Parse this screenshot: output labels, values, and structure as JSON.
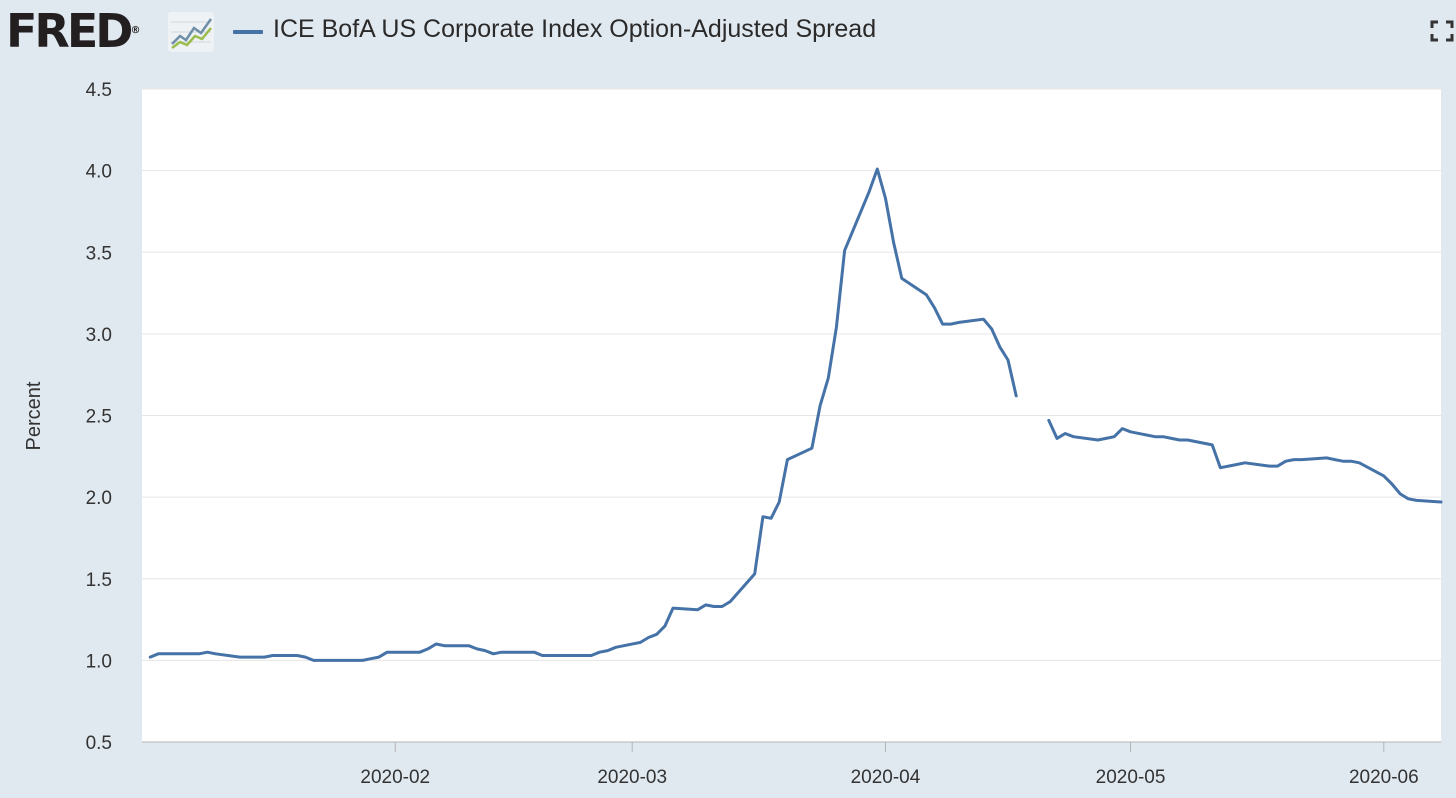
{
  "header": {
    "logo_text": "FRED",
    "logo_registered": "®",
    "title": "ICE BofA US Corporate Index Option-Adjusted Spread",
    "series_color": "#4572a7"
  },
  "icons": {
    "logo_graph": "line-chart-icon",
    "fullscreen": "fullscreen-icon"
  },
  "chart_data": {
    "type": "line",
    "title": "ICE BofA US Corporate Index Option-Adjusted Spread",
    "ylabel": "Percent",
    "xlabel": "",
    "ylim": [
      0.5,
      4.5
    ],
    "yticks": [
      "0.5",
      "1.0",
      "1.5",
      "2.0",
      "2.5",
      "3.0",
      "3.5",
      "4.0",
      "4.5"
    ],
    "xticks": [
      {
        "label": "2020-02",
        "date": "2020-02-01"
      },
      {
        "label": "2020-03",
        "date": "2020-03-01"
      },
      {
        "label": "2020-04",
        "date": "2020-04-01"
      },
      {
        "label": "2020-05",
        "date": "2020-05-01"
      },
      {
        "label": "2020-06",
        "date": "2020-06-01"
      }
    ],
    "xlim": [
      "2020-01-01",
      "2020-06-08"
    ],
    "grid": "horizontal",
    "series": [
      {
        "color": "#4572a7",
        "points": [
          [
            "2020-01-02",
            1.02
          ],
          [
            "2020-01-03",
            1.04
          ],
          [
            "2020-01-06",
            1.04
          ],
          [
            "2020-01-07",
            1.04
          ],
          [
            "2020-01-08",
            1.04
          ],
          [
            "2020-01-09",
            1.05
          ],
          [
            "2020-01-10",
            1.04
          ],
          [
            "2020-01-13",
            1.02
          ],
          [
            "2020-01-14",
            1.02
          ],
          [
            "2020-01-15",
            1.02
          ],
          [
            "2020-01-16",
            1.02
          ],
          [
            "2020-01-17",
            1.03
          ],
          [
            "2020-01-20",
            1.03
          ],
          [
            "2020-01-21",
            1.02
          ],
          [
            "2020-01-22",
            1.0
          ],
          [
            "2020-01-23",
            1.0
          ],
          [
            "2020-01-24",
            1.0
          ],
          [
            "2020-01-27",
            1.0
          ],
          [
            "2020-01-28",
            1.0
          ],
          [
            "2020-01-29",
            1.01
          ],
          [
            "2020-01-30",
            1.02
          ],
          [
            "2020-01-31",
            1.05
          ],
          [
            "2020-02-03",
            1.05
          ],
          [
            "2020-02-04",
            1.05
          ],
          [
            "2020-02-05",
            1.07
          ],
          [
            "2020-02-06",
            1.1
          ],
          [
            "2020-02-07",
            1.09
          ],
          [
            "2020-02-10",
            1.09
          ],
          [
            "2020-02-11",
            1.07
          ],
          [
            "2020-02-12",
            1.06
          ],
          [
            "2020-02-13",
            1.04
          ],
          [
            "2020-02-14",
            1.05
          ],
          [
            "2020-02-17",
            1.05
          ],
          [
            "2020-02-18",
            1.05
          ],
          [
            "2020-02-19",
            1.03
          ],
          [
            "2020-02-20",
            1.03
          ],
          [
            "2020-02-21",
            1.03
          ],
          [
            "2020-02-24",
            1.03
          ],
          [
            "2020-02-25",
            1.03
          ],
          [
            "2020-02-26",
            1.05
          ],
          [
            "2020-02-27",
            1.06
          ],
          [
            "2020-02-28",
            1.08
          ],
          [
            "2020-03-02",
            1.11
          ],
          [
            "2020-03-03",
            1.14
          ],
          [
            "2020-03-04",
            1.16
          ],
          [
            "2020-03-05",
            1.21
          ],
          [
            "2020-03-06",
            1.32
          ],
          [
            "2020-03-09",
            1.31
          ],
          [
            "2020-03-10",
            1.34
          ],
          [
            "2020-03-11",
            1.33
          ],
          [
            "2020-03-12",
            1.33
          ],
          [
            "2020-03-13",
            1.36
          ],
          [
            "2020-03-16",
            1.53
          ],
          [
            "2020-03-17",
            1.88
          ],
          [
            "2020-03-18",
            1.87
          ],
          [
            "2020-03-19",
            1.97
          ],
          [
            "2020-03-20",
            2.23
          ],
          [
            "2020-03-23",
            2.3
          ],
          [
            "2020-03-24",
            2.56
          ],
          [
            "2020-03-25",
            2.73
          ],
          [
            "2020-03-26",
            3.04
          ],
          [
            "2020-03-27",
            3.51
          ],
          [
            "2020-03-30",
            3.87
          ],
          [
            "2020-03-31",
            4.01
          ],
          [
            "2020-04-01",
            3.83
          ],
          [
            "2020-04-02",
            3.56
          ],
          [
            "2020-04-03",
            3.34
          ],
          [
            "2020-04-06",
            3.24
          ],
          [
            "2020-04-07",
            3.16
          ],
          [
            "2020-04-08",
            3.06
          ],
          [
            "2020-04-09",
            3.06
          ],
          [
            "2020-04-10",
            3.07
          ],
          [
            "2020-04-13",
            3.09
          ],
          [
            "2020-04-14",
            3.03
          ],
          [
            "2020-04-15",
            2.92
          ],
          [
            "2020-04-16",
            2.84
          ],
          [
            "2020-04-17",
            2.62
          ],
          null,
          [
            "2020-04-21",
            2.47
          ],
          [
            "2020-04-22",
            2.36
          ],
          [
            "2020-04-23",
            2.39
          ],
          [
            "2020-04-24",
            2.37
          ],
          [
            "2020-04-27",
            2.35
          ],
          [
            "2020-04-28",
            2.36
          ],
          [
            "2020-04-29",
            2.37
          ],
          [
            "2020-04-30",
            2.42
          ],
          [
            "2020-05-01",
            2.4
          ],
          [
            "2020-05-04",
            2.37
          ],
          [
            "2020-05-05",
            2.37
          ],
          [
            "2020-05-06",
            2.36
          ],
          [
            "2020-05-07",
            2.35
          ],
          [
            "2020-05-08",
            2.35
          ],
          [
            "2020-05-11",
            2.32
          ],
          [
            "2020-05-12",
            2.18
          ],
          [
            "2020-05-13",
            2.19
          ],
          [
            "2020-05-14",
            2.2
          ],
          [
            "2020-05-15",
            2.21
          ],
          [
            "2020-05-18",
            2.19
          ],
          [
            "2020-05-19",
            2.19
          ],
          [
            "2020-05-20",
            2.22
          ],
          [
            "2020-05-21",
            2.23
          ],
          [
            "2020-05-22",
            2.23
          ],
          [
            "2020-05-25",
            2.24
          ],
          [
            "2020-05-26",
            2.23
          ],
          [
            "2020-05-27",
            2.22
          ],
          [
            "2020-05-28",
            2.22
          ],
          [
            "2020-05-29",
            2.21
          ],
          [
            "2020-06-01",
            2.13
          ],
          [
            "2020-06-02",
            2.08
          ],
          [
            "2020-06-03",
            2.02
          ],
          [
            "2020-06-04",
            1.99
          ],
          [
            "2020-06-05",
            1.98
          ],
          [
            "2020-06-08",
            1.97
          ]
        ]
      }
    ]
  }
}
